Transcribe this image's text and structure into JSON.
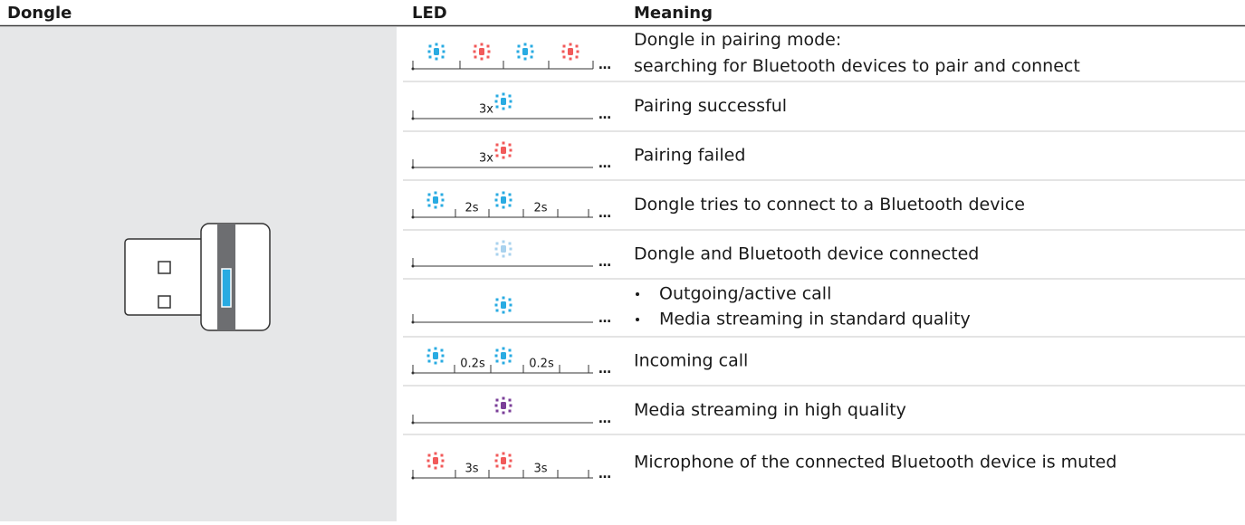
{
  "header": {
    "dongle": "Dongle",
    "led": "LED",
    "meaning": "Meaning"
  },
  "rows": [
    {
      "led": [
        "…"
      ],
      "meaning": [
        "Dongle in pairing mode:",
        "searching for Bluetooth devices to pair and connect"
      ]
    },
    {
      "led": [
        "3x",
        "…"
      ],
      "meaning": [
        "Pairing successful"
      ]
    },
    {
      "led": [
        "3x",
        "…"
      ],
      "meaning": [
        "Pairing failed"
      ]
    },
    {
      "led": [
        "2s",
        "2s",
        "…"
      ],
      "meaning": [
        "Dongle tries to connect to a Bluetooth device"
      ]
    },
    {
      "led": [
        "…"
      ],
      "meaning": [
        "Dongle and Bluetooth device connected"
      ]
    },
    {
      "led": [
        "…"
      ],
      "bullets": [
        "Outgoing/active call",
        "Media streaming in standard quality"
      ]
    },
    {
      "led": [
        "0.2s",
        "0.2s",
        "…"
      ],
      "meaning": [
        "Incoming call"
      ]
    },
    {
      "led": [
        "…"
      ],
      "meaning": [
        "Media streaming in high quality"
      ]
    },
    {
      "led": [
        "3s",
        "3s",
        "…"
      ],
      "meaning": [
        "Microphone of the connected Bluetooth device is muted"
      ]
    }
  ]
}
